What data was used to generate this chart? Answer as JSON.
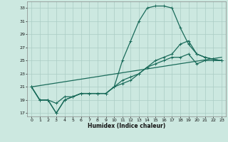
{
  "xlabel": "Humidex (Indice chaleur)",
  "bg_color": "#cce8e0",
  "grid_color": "#aaccc4",
  "line_color": "#1a6b5a",
  "xlim": [
    -0.5,
    23.5
  ],
  "ylim": [
    16.5,
    34
  ],
  "yticks": [
    17,
    19,
    21,
    23,
    25,
    27,
    29,
    31,
    33
  ],
  "xticks": [
    0,
    1,
    2,
    3,
    4,
    5,
    6,
    7,
    8,
    9,
    10,
    11,
    12,
    13,
    14,
    15,
    16,
    17,
    18,
    19,
    20,
    21,
    22,
    23
  ],
  "line1_x": [
    0,
    1,
    2,
    3,
    4,
    5,
    6,
    7,
    8,
    9,
    10,
    11,
    12,
    13,
    14,
    15,
    16,
    17,
    18,
    19,
    20,
    21,
    22,
    23
  ],
  "line1_y": [
    21,
    19,
    19,
    17,
    19,
    19.5,
    20,
    20,
    20,
    20,
    21,
    25,
    28,
    31,
    33,
    33.3,
    33.3,
    33,
    30,
    27.5,
    26,
    25.5,
    25.2,
    25
  ],
  "line2_x": [
    0,
    1,
    2,
    3,
    4,
    5,
    6,
    7,
    8,
    9,
    10,
    11,
    12,
    13,
    14,
    15,
    16,
    17,
    18,
    19,
    20,
    21,
    22,
    23
  ],
  "line2_y": [
    21,
    19,
    19,
    18.5,
    19.5,
    19.5,
    20,
    20,
    20,
    20,
    21,
    21.5,
    22,
    23,
    24,
    25,
    25.5,
    26,
    27.5,
    28,
    26,
    25.5,
    25.2,
    25
  ],
  "line3_x": [
    0,
    1,
    2,
    3,
    4,
    5,
    6,
    7,
    8,
    9,
    10,
    11,
    12,
    13,
    14,
    15,
    16,
    17,
    18,
    19,
    20,
    21,
    22,
    23
  ],
  "line3_y": [
    21,
    19,
    19,
    17,
    19,
    19.5,
    20,
    20,
    20,
    20,
    21,
    22,
    22.5,
    23,
    24,
    24.5,
    25,
    25.5,
    25.5,
    26,
    24.5,
    25,
    25,
    25
  ],
  "line4_x": [
    0,
    23
  ],
  "line4_y": [
    21,
    25.5
  ]
}
